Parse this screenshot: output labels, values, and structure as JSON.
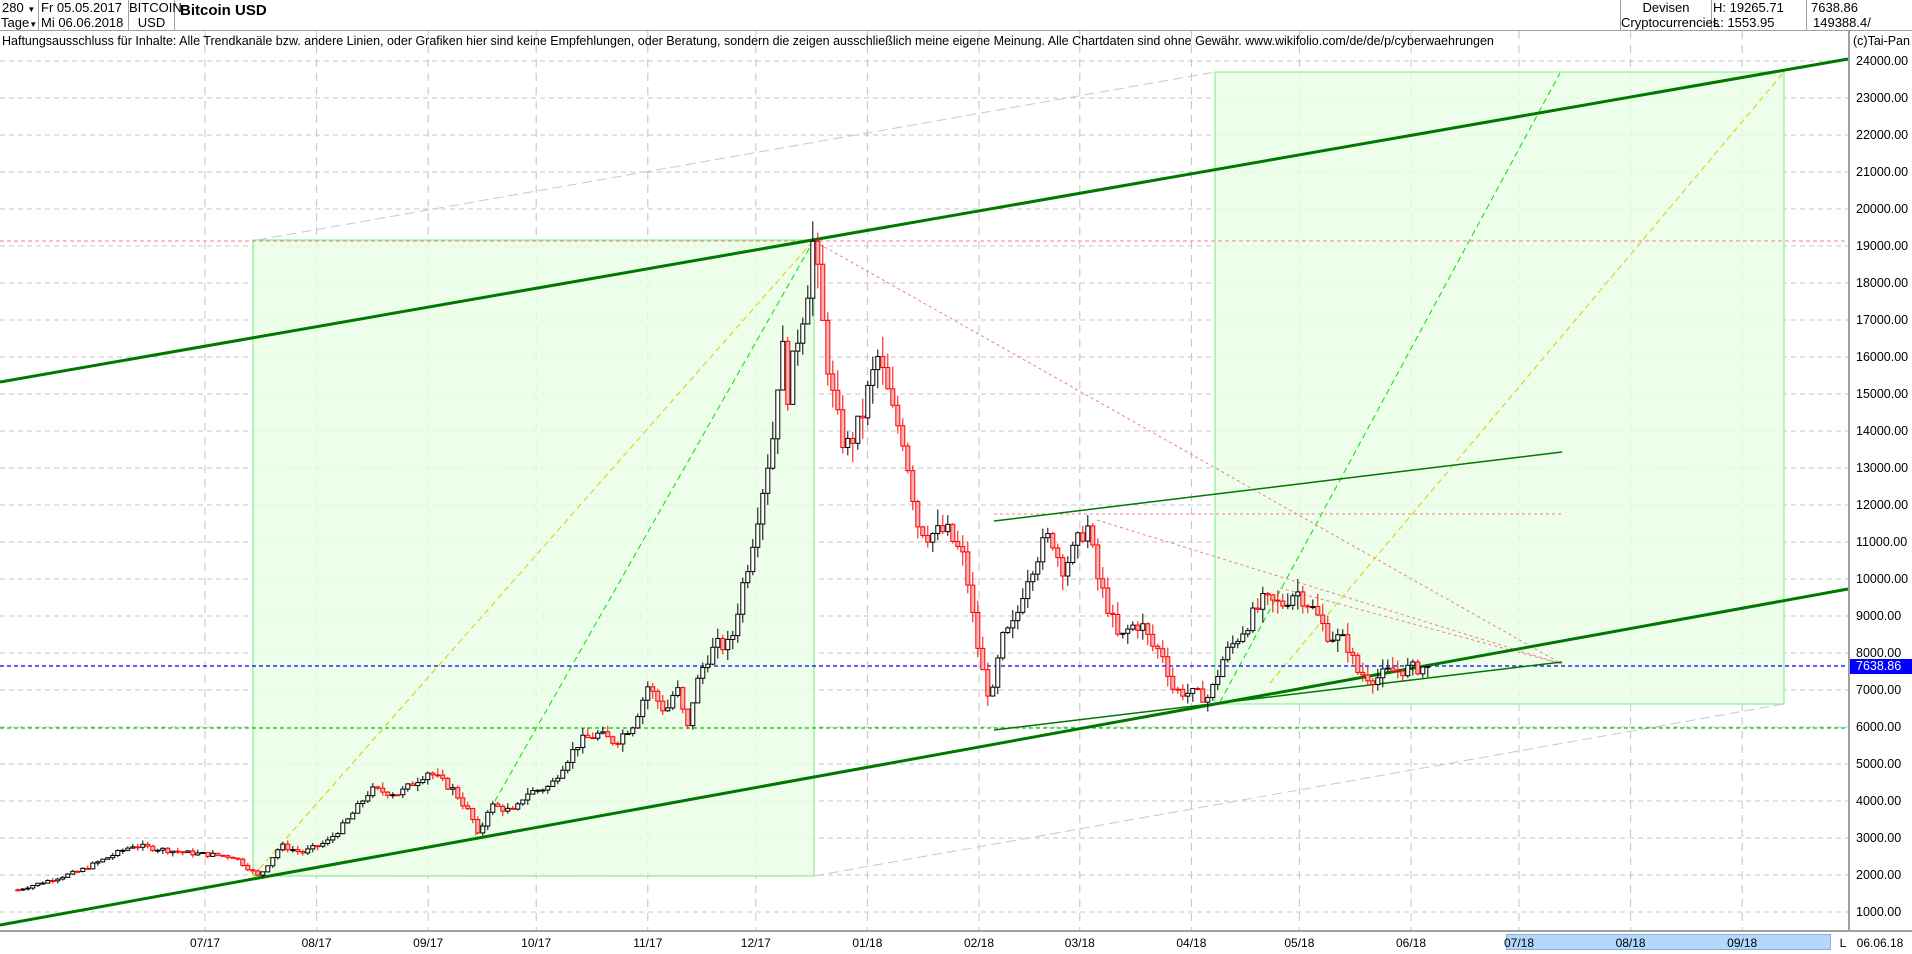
{
  "header": {
    "period_count": "280",
    "period_unit": "Tage",
    "date_from": "Fr 05.05.2017",
    "date_to": "Mi 06.06.2018",
    "symbol_line1": "BITCOIN",
    "symbol_line2": "USD",
    "title": "Bitcoin USD",
    "group_line1": "Devisen",
    "group_line2": "Cryptocurrencies",
    "high": "H: 19265.71",
    "low": "L: 1553.95",
    "last": "7638.86",
    "volume": "149388.4/"
  },
  "disclaimer": "Haftungsausschluss für Inhalte: Alle Trendkanäle bzw. andere Linien, oder Grafiken hier sind keine Empfehlungen, oder Beratung, sondern die zeigen ausschließlich meine eigene Meinung. Alle Chartdaten sind ohne Gewähr.  www.wikifolio.com/de/de/p/cyberwaehrungen",
  "copyright": "(c)Tai-Pan",
  "colors": {
    "up_body": "#ffffff",
    "up_line": "#000000",
    "down_body": "#f8b4b4",
    "down_line": "#ff0000",
    "channel": "#007800",
    "box_fill": "#e8ffe6",
    "box_line": "#90ee90",
    "current_line": "#0000ff"
  },
  "chart_data": {
    "type": "candlestick",
    "title": "Bitcoin USD",
    "ylim": [
      0,
      25000
    ],
    "yticks": [
      "1000.00",
      "2000.00",
      "3000.00",
      "4000.00",
      "5000.00",
      "6000.00",
      "7000.00",
      "8000.00",
      "9000.00",
      "10000.00",
      "11000.00",
      "12000.00",
      "13000.00",
      "14000.00",
      "15000.00",
      "16000.00",
      "17000.00",
      "18000.00",
      "19000.00",
      "20000.00",
      "21000.00",
      "22000.00",
      "23000.00",
      "24000.00"
    ],
    "xticks": [
      {
        "label": "07/17",
        "date": "2017-07-01"
      },
      {
        "label": "08/17",
        "date": "2017-08-01"
      },
      {
        "label": "09/17",
        "date": "2017-09-01"
      },
      {
        "label": "10/17",
        "date": "2017-10-01"
      },
      {
        "label": "11/17",
        "date": "2017-11-01"
      },
      {
        "label": "12/17",
        "date": "2017-12-01"
      },
      {
        "label": "01/18",
        "date": "2018-01-01"
      },
      {
        "label": "02/18",
        "date": "2018-02-01"
      },
      {
        "label": "03/18",
        "date": "2018-03-01"
      },
      {
        "label": "04/18",
        "date": "2018-04-01"
      },
      {
        "label": "05/18",
        "date": "2018-05-01"
      },
      {
        "label": "06/18",
        "date": "2018-06-01"
      },
      {
        "label": "07/18",
        "date": "2018-07-01"
      },
      {
        "label": "08/18",
        "date": "2018-08-01"
      },
      {
        "label": "09/18",
        "date": "2018-09-01"
      }
    ],
    "last_date_label": "06.06.18",
    "last_marker": "L",
    "current_price": 7638.86,
    "current_price_label": "7638.86",
    "support_level": 5950,
    "high_level": 19265.71,
    "close_path": [
      [
        "2017-05-10",
        1600
      ],
      [
        "2017-05-27",
        2100
      ],
      [
        "2017-06-11",
        2800
      ],
      [
        "2017-06-26",
        2600
      ],
      [
        "2017-07-09",
        2500
      ],
      [
        "2017-07-16",
        1950
      ],
      [
        "2017-07-22",
        2800
      ],
      [
        "2017-07-28",
        2600
      ],
      [
        "2017-08-04",
        2900
      ],
      [
        "2017-08-09",
        3400
      ],
      [
        "2017-08-16",
        4300
      ],
      [
        "2017-08-24",
        4200
      ],
      [
        "2017-09-01",
        4800
      ],
      [
        "2017-09-08",
        4300
      ],
      [
        "2017-09-13",
        3600
      ],
      [
        "2017-09-15",
        3000
      ],
      [
        "2017-09-18",
        3900
      ],
      [
        "2017-09-25",
        3700
      ],
      [
        "2017-09-28",
        4200
      ],
      [
        "2017-10-05",
        4400
      ],
      [
        "2017-10-08",
        4900
      ],
      [
        "2017-10-13",
        5600
      ],
      [
        "2017-10-18",
        5800
      ],
      [
        "2017-10-23",
        5600
      ],
      [
        "2017-10-28",
        6100
      ],
      [
        "2017-11-01",
        7100
      ],
      [
        "2017-11-06",
        6400
      ],
      [
        "2017-11-09",
        7100
      ],
      [
        "2017-11-12",
        5900
      ],
      [
        "2017-11-14",
        7000
      ],
      [
        "2017-11-17",
        7800
      ],
      [
        "2017-11-20",
        8200
      ],
      [
        "2017-11-24",
        8200
      ],
      [
        "2017-11-27",
        9700
      ],
      [
        "2017-11-29",
        10500
      ],
      [
        "2017-12-01",
        11500
      ],
      [
        "2017-12-06",
        14000
      ],
      [
        "2017-12-08",
        16500
      ],
      [
        "2017-12-10",
        15000
      ],
      [
        "2017-12-13",
        16800
      ],
      [
        "2017-12-15",
        17600
      ],
      [
        "2017-12-17",
        19200
      ],
      [
        "2017-12-20",
        16500
      ],
      [
        "2017-12-23",
        14500
      ],
      [
        "2017-12-26",
        13500
      ],
      [
        "2017-12-30",
        14200
      ],
      [
        "2018-01-01",
        15000
      ],
      [
        "2018-01-04",
        16000
      ],
      [
        "2018-01-08",
        14500
      ],
      [
        "2018-01-11",
        13800
      ],
      [
        "2018-01-15",
        11500
      ],
      [
        "2018-01-18",
        11200
      ],
      [
        "2018-01-23",
        11300
      ],
      [
        "2018-01-28",
        10500
      ],
      [
        "2018-01-31",
        8500
      ],
      [
        "2018-02-03",
        7000
      ],
      [
        "2018-02-05",
        6900
      ],
      [
        "2018-02-07",
        8300
      ],
      [
        "2018-02-11",
        8800
      ],
      [
        "2018-02-14",
        10000
      ],
      [
        "2018-02-18",
        10800
      ],
      [
        "2018-02-21",
        11200
      ],
      [
        "2018-02-24",
        10300
      ],
      [
        "2018-02-27",
        10700
      ],
      [
        "2018-03-03",
        11500
      ],
      [
        "2018-03-06",
        10000
      ],
      [
        "2018-03-09",
        9200
      ],
      [
        "2018-03-12",
        8300
      ],
      [
        "2018-03-15",
        8700
      ],
      [
        "2018-03-18",
        8800
      ],
      [
        "2018-03-21",
        8200
      ],
      [
        "2018-03-24",
        8000
      ],
      [
        "2018-03-27",
        7000
      ],
      [
        "2018-04-01",
        6900
      ],
      [
        "2018-04-06",
        6800
      ],
      [
        "2018-04-10",
        7900
      ],
      [
        "2018-04-13",
        8300
      ],
      [
        "2018-04-18",
        9000
      ],
      [
        "2018-04-21",
        9400
      ],
      [
        "2018-04-26",
        9300
      ],
      [
        "2018-04-30",
        9700
      ],
      [
        "2018-05-04",
        9300
      ],
      [
        "2018-05-09",
        8500
      ],
      [
        "2018-05-14",
        8300
      ],
      [
        "2018-05-17",
        7500
      ],
      [
        "2018-05-22",
        7300
      ],
      [
        "2018-05-26",
        7500
      ],
      [
        "2018-06-06",
        7638.86
      ]
    ]
  }
}
